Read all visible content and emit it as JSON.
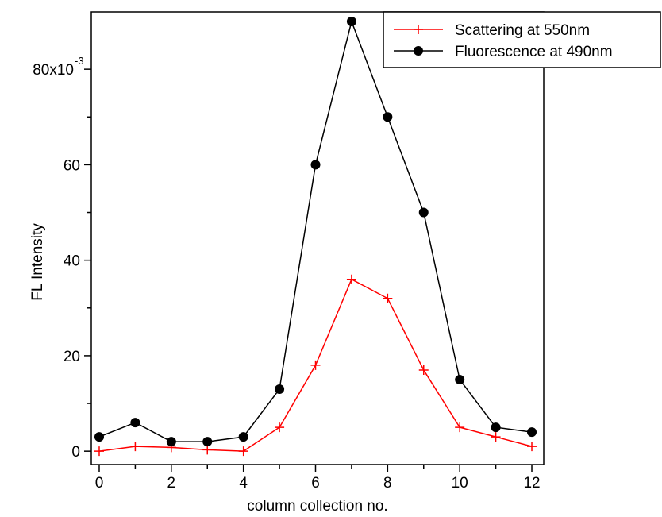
{
  "chart_data": {
    "type": "line",
    "x_label": "column collection no.",
    "y_label": "FL Intensity",
    "x": [
      0,
      1,
      2,
      3,
      4,
      5,
      6,
      7,
      8,
      9,
      10,
      11,
      12
    ],
    "series": [
      {
        "name": "Scattering at 550nm",
        "color": "#ff0000",
        "marker": "plus",
        "values": [
          0,
          1,
          0.8,
          0.3,
          0,
          5,
          18,
          36,
          32,
          17,
          5,
          3,
          1
        ]
      },
      {
        "name": "Fluorescence at 490nm",
        "color": "#000000",
        "marker": "circle",
        "values": [
          3,
          6,
          2,
          2,
          3,
          13,
          60,
          90,
          70,
          50,
          15,
          5,
          4
        ]
      }
    ],
    "xlim": [
      -0.22,
      12.33
    ],
    "ylim": [
      -2.8,
      92
    ],
    "xticks": [
      0,
      2,
      4,
      6,
      8,
      10,
      12
    ],
    "x_minor_ticks": [
      1,
      3,
      5,
      7,
      9,
      11
    ],
    "yticks": [
      0,
      20,
      40,
      60,
      {
        "value": 80,
        "label": "80x10"
      }
    ],
    "y_exponent": "-3",
    "y_minor_ticks": [
      10,
      30,
      50,
      70
    ],
    "legend": "top-right",
    "grid": false
  }
}
